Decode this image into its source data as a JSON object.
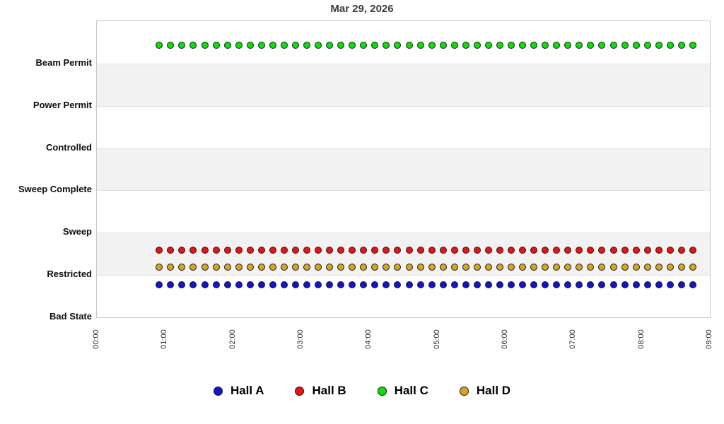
{
  "title": "Mar 29, 2026",
  "colors": {
    "background": "#ffffff",
    "band_shaded": "#f2f2f2",
    "gridline": "#e2e2e2",
    "plot_border": "#c8c8c8",
    "dot_outline": "#1a1a1a",
    "hall_a_blue": "#1414cc",
    "hall_b_red": "#ee1111",
    "hall_c_green": "#0be00b",
    "hall_d_gold": "#d9a420"
  },
  "chart_data": {
    "type": "scatter",
    "title": "Mar 29, 2026",
    "x_axis": {
      "label": "",
      "ticks": [
        "00:00",
        "01:00",
        "02:00",
        "03:00",
        "04:00",
        "05:00",
        "06:00",
        "07:00",
        "08:00",
        "09:00"
      ],
      "range_minutes": [
        0,
        540
      ]
    },
    "y_axis": {
      "labels_top_to_bottom": [
        "Beam Permit",
        "Power Permit",
        "Controlled",
        "Sweep Complete",
        "Sweep",
        "Restricted",
        "Bad State"
      ],
      "categories_bottom_to_top": [
        "Bad State",
        "Restricted",
        "Sweep",
        "Sweep Complete",
        "Controlled",
        "Power Permit",
        "Beam Permit"
      ],
      "units_range": [
        0,
        7
      ]
    },
    "grid": {
      "shaded_bands_from_bottom": [
        1,
        3,
        5
      ],
      "band_color": "#f2f2f2",
      "gridlines": true
    },
    "times": [
      "00:55",
      "01:05",
      "01:15",
      "01:25",
      "01:35",
      "01:45",
      "01:55",
      "02:05",
      "02:15",
      "02:25",
      "02:35",
      "02:45",
      "02:55",
      "03:05",
      "03:15",
      "03:25",
      "03:35",
      "03:45",
      "03:55",
      "04:05",
      "04:15",
      "04:25",
      "04:35",
      "04:45",
      "04:55",
      "05:05",
      "05:15",
      "05:25",
      "05:35",
      "05:45",
      "05:55",
      "06:05",
      "06:15",
      "06:25",
      "06:35",
      "06:45",
      "06:55",
      "07:05",
      "07:15",
      "07:25",
      "07:35",
      "07:45",
      "07:55",
      "08:05",
      "08:15",
      "08:25",
      "08:35",
      "08:45"
    ],
    "series": [
      {
        "name": "Hall A",
        "color": "#1414cc",
        "state": "Restricted",
        "y_value": 0.77
      },
      {
        "name": "Hall B",
        "color": "#ee1111",
        "state": "Restricted",
        "y_value": 1.59
      },
      {
        "name": "Hall C",
        "color": "#0be00b",
        "state": "Beam Permit",
        "y_value": 6.43
      },
      {
        "name": "Hall D",
        "color": "#d9a420",
        "state": "Restricted",
        "y_value": 1.19
      }
    ],
    "legend": {
      "position": "bottom",
      "entries": [
        "Hall A",
        "Hall B",
        "Hall C",
        "Hall D"
      ]
    }
  }
}
